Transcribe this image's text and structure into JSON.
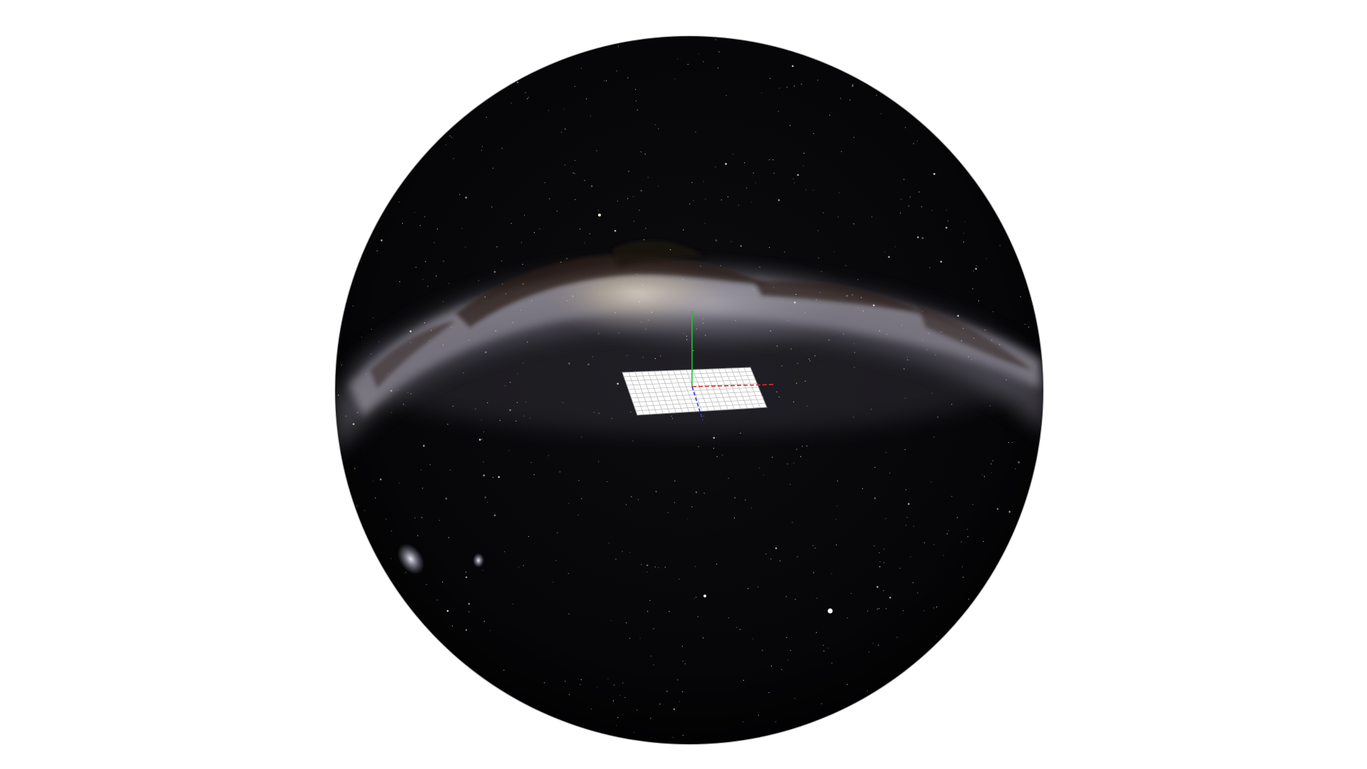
{
  "scene": {
    "background_color": "#ffffff",
    "sky_base_color": "#060608",
    "milky_way_core_color": "#e9dcc6",
    "milky_way_glow_color": "#b9b7c6",
    "dust_lane_color": "#2a1f17",
    "grid_plane_color": "#ffffff",
    "grid_line_color": "#b7b7b7",
    "axis_x_color": "#e03030",
    "axis_y_color": "#22c033",
    "axis_z_color": "#2f3fd8"
  },
  "icons": {
    "sky_sphere": "milky-way-panorama",
    "grid": "grid-helper",
    "axes": "axes-helper"
  }
}
